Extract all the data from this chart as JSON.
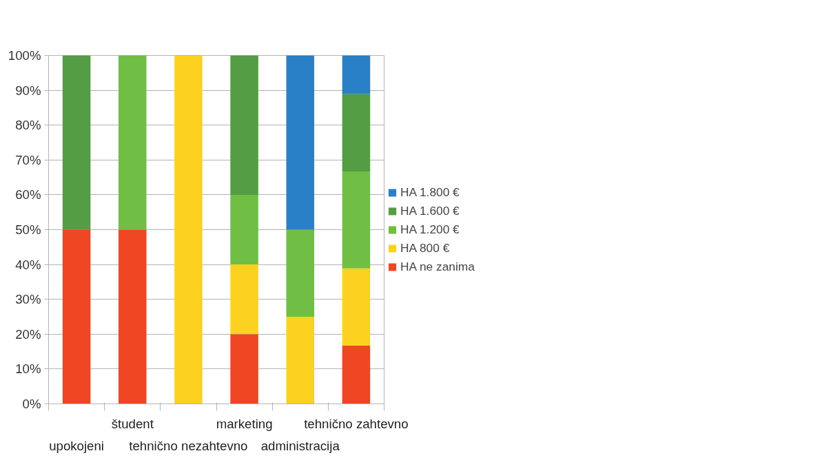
{
  "chart_data": {
    "type": "bar",
    "stacked": true,
    "categories": [
      "upokojeni",
      "študent",
      "tehnično nezahtevno",
      "marketing",
      "administracija",
      "tehnično zahtevno"
    ],
    "series": [
      {
        "name": "HA ne zanima",
        "color": "#ef4623",
        "values": [
          50,
          50,
          0,
          20,
          0,
          16.7
        ]
      },
      {
        "name": "HA 800 €",
        "color": "#fdd120",
        "values": [
          0,
          0,
          100,
          20,
          25,
          22.2
        ]
      },
      {
        "name": "HA 1.200 €",
        "color": "#70bf44",
        "values": [
          0,
          50,
          0,
          20,
          25,
          27.8
        ]
      },
      {
        "name": "HA 1.600 €",
        "color": "#559d44",
        "values": [
          50,
          0,
          0,
          40,
          0,
          22.2
        ]
      },
      {
        "name": "HA 1.800 €",
        "color": "#2a80c6",
        "values": [
          0,
          0,
          0,
          0,
          50,
          11.1
        ]
      }
    ],
    "ylim": [
      0,
      100
    ],
    "yticks": [
      {
        "value": 0,
        "label": "0%"
      },
      {
        "value": 10,
        "label": "10%"
      },
      {
        "value": 20,
        "label": "20%"
      },
      {
        "value": 30,
        "label": "30%"
      },
      {
        "value": 40,
        "label": "40%"
      },
      {
        "value": 50,
        "label": "50%"
      },
      {
        "value": 60,
        "label": "60%"
      },
      {
        "value": 70,
        "label": "70%"
      },
      {
        "value": 80,
        "label": "80%"
      },
      {
        "value": 90,
        "label": "90%"
      },
      {
        "value": 100,
        "label": "100%"
      }
    ],
    "grid": "y",
    "legend": "right"
  }
}
